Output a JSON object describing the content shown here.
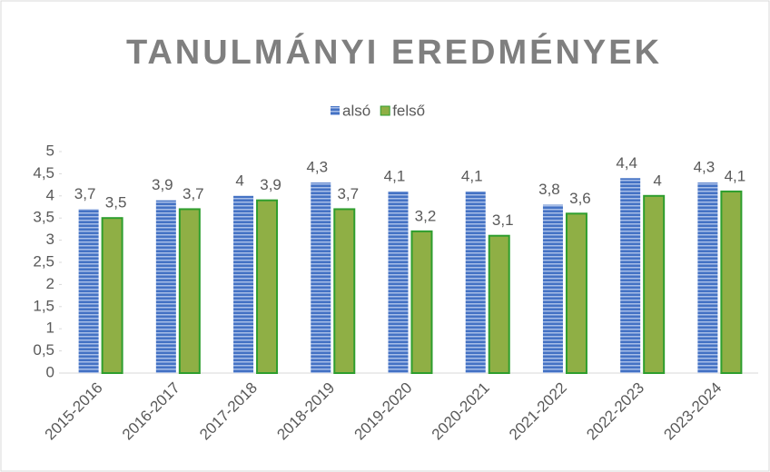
{
  "chart_data": {
    "type": "bar",
    "title": "TANULMÁNYI EREDMÉNYEK",
    "categories": [
      "2015-2016",
      "2016-2017",
      "2017-2018",
      "2018-2019",
      "2019-2020",
      "2020-2021",
      "2021-2022",
      "2022-2023",
      "2023-2024"
    ],
    "series": [
      {
        "name": "alsó",
        "color": "#4472c4",
        "values": [
          3.7,
          3.9,
          4,
          4.3,
          4.1,
          4.1,
          3.8,
          4.4,
          4.3
        ],
        "value_labels": [
          "3,7",
          "3,9",
          "4",
          "4,3",
          "4,1",
          "4,1",
          "3,8",
          "4,4",
          "4,3"
        ]
      },
      {
        "name": "felső",
        "color": "#8faf45",
        "values": [
          3.5,
          3.7,
          3.9,
          3.7,
          3.2,
          3.1,
          3.6,
          4,
          4.1
        ],
        "value_labels": [
          "3,5",
          "3,7",
          "3,9",
          "3,7",
          "3,2",
          "3,1",
          "3,6",
          "4",
          "4,1"
        ]
      }
    ],
    "ylim": [
      0,
      5
    ],
    "yticks": [
      0,
      {
        "value": 0.5,
        "label": "0,5"
      },
      1,
      {
        "value": 1.5,
        "label": "1,5"
      },
      2,
      {
        "value": 2.5,
        "label": "2,5"
      },
      3,
      {
        "value": 3.5,
        "label": "3,5"
      },
      4,
      {
        "value": 4.5,
        "label": "4,5"
      },
      5
    ],
    "legend": "top"
  }
}
